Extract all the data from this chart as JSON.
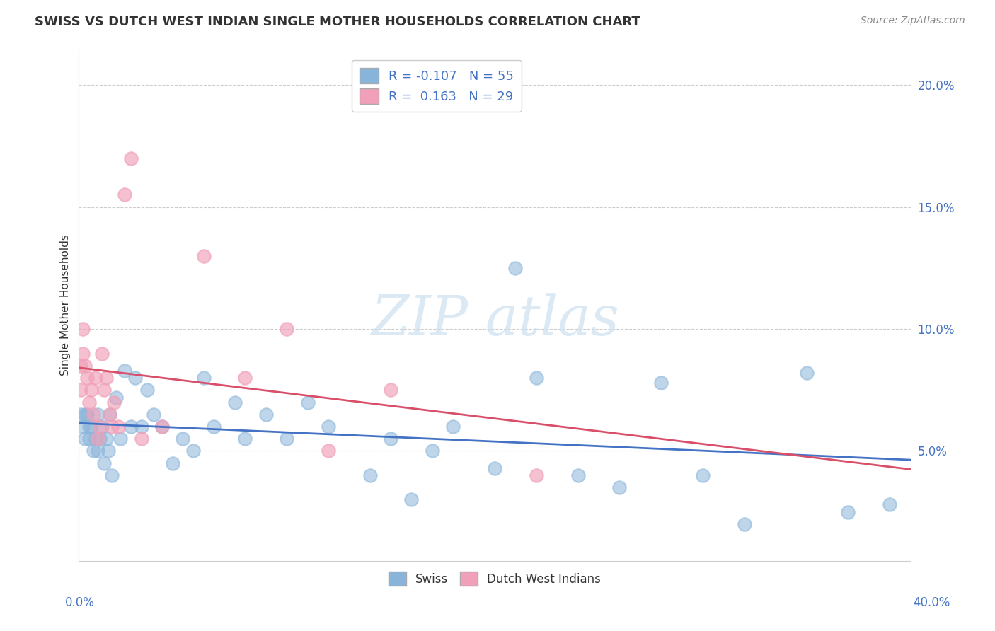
{
  "title": "SWISS VS DUTCH WEST INDIAN SINGLE MOTHER HOUSEHOLDS CORRELATION CHART",
  "source": "Source: ZipAtlas.com",
  "ylabel": "Single Mother Households",
  "yticks": [
    "5.0%",
    "10.0%",
    "15.0%",
    "20.0%"
  ],
  "ytick_vals": [
    0.05,
    0.1,
    0.15,
    0.2
  ],
  "xmin": 0.0,
  "xmax": 0.4,
  "ymin": 0.005,
  "ymax": 0.215,
  "swiss_R": -0.107,
  "swiss_N": 55,
  "dutch_R": 0.163,
  "dutch_N": 29,
  "swiss_color": "#89b4d9",
  "dutch_color": "#f0a0b8",
  "swiss_line_color": "#4472c4",
  "dutch_line_color": "#d94f6a",
  "tick_color": "#4472c4",
  "swiss_x": [
    0.001,
    0.002,
    0.003,
    0.003,
    0.004,
    0.005,
    0.005,
    0.006,
    0.007,
    0.008,
    0.009,
    0.009,
    0.01,
    0.011,
    0.012,
    0.013,
    0.014,
    0.015,
    0.016,
    0.018,
    0.02,
    0.022,
    0.025,
    0.027,
    0.03,
    0.033,
    0.036,
    0.04,
    0.045,
    0.05,
    0.055,
    0.06,
    0.065,
    0.075,
    0.08,
    0.09,
    0.1,
    0.11,
    0.12,
    0.14,
    0.15,
    0.16,
    0.17,
    0.18,
    0.2,
    0.21,
    0.22,
    0.24,
    0.26,
    0.28,
    0.3,
    0.32,
    0.35,
    0.37,
    0.39
  ],
  "swiss_y": [
    0.065,
    0.06,
    0.065,
    0.055,
    0.065,
    0.06,
    0.055,
    0.06,
    0.05,
    0.055,
    0.065,
    0.05,
    0.055,
    0.06,
    0.045,
    0.055,
    0.05,
    0.065,
    0.04,
    0.072,
    0.055,
    0.083,
    0.06,
    0.08,
    0.06,
    0.075,
    0.065,
    0.06,
    0.045,
    0.055,
    0.05,
    0.08,
    0.06,
    0.07,
    0.055,
    0.065,
    0.055,
    0.07,
    0.06,
    0.04,
    0.055,
    0.03,
    0.05,
    0.06,
    0.043,
    0.125,
    0.08,
    0.04,
    0.035,
    0.078,
    0.04,
    0.02,
    0.082,
    0.025,
    0.028
  ],
  "dutch_x": [
    0.001,
    0.001,
    0.002,
    0.002,
    0.003,
    0.004,
    0.005,
    0.006,
    0.007,
    0.008,
    0.009,
    0.01,
    0.011,
    0.012,
    0.013,
    0.015,
    0.016,
    0.017,
    0.019,
    0.022,
    0.025,
    0.03,
    0.04,
    0.06,
    0.08,
    0.1,
    0.12,
    0.15,
    0.22
  ],
  "dutch_y": [
    0.075,
    0.085,
    0.1,
    0.09,
    0.085,
    0.08,
    0.07,
    0.075,
    0.065,
    0.08,
    0.055,
    0.06,
    0.09,
    0.075,
    0.08,
    0.065,
    0.06,
    0.07,
    0.06,
    0.155,
    0.17,
    0.055,
    0.06,
    0.13,
    0.08,
    0.1,
    0.05,
    0.075,
    0.04
  ]
}
